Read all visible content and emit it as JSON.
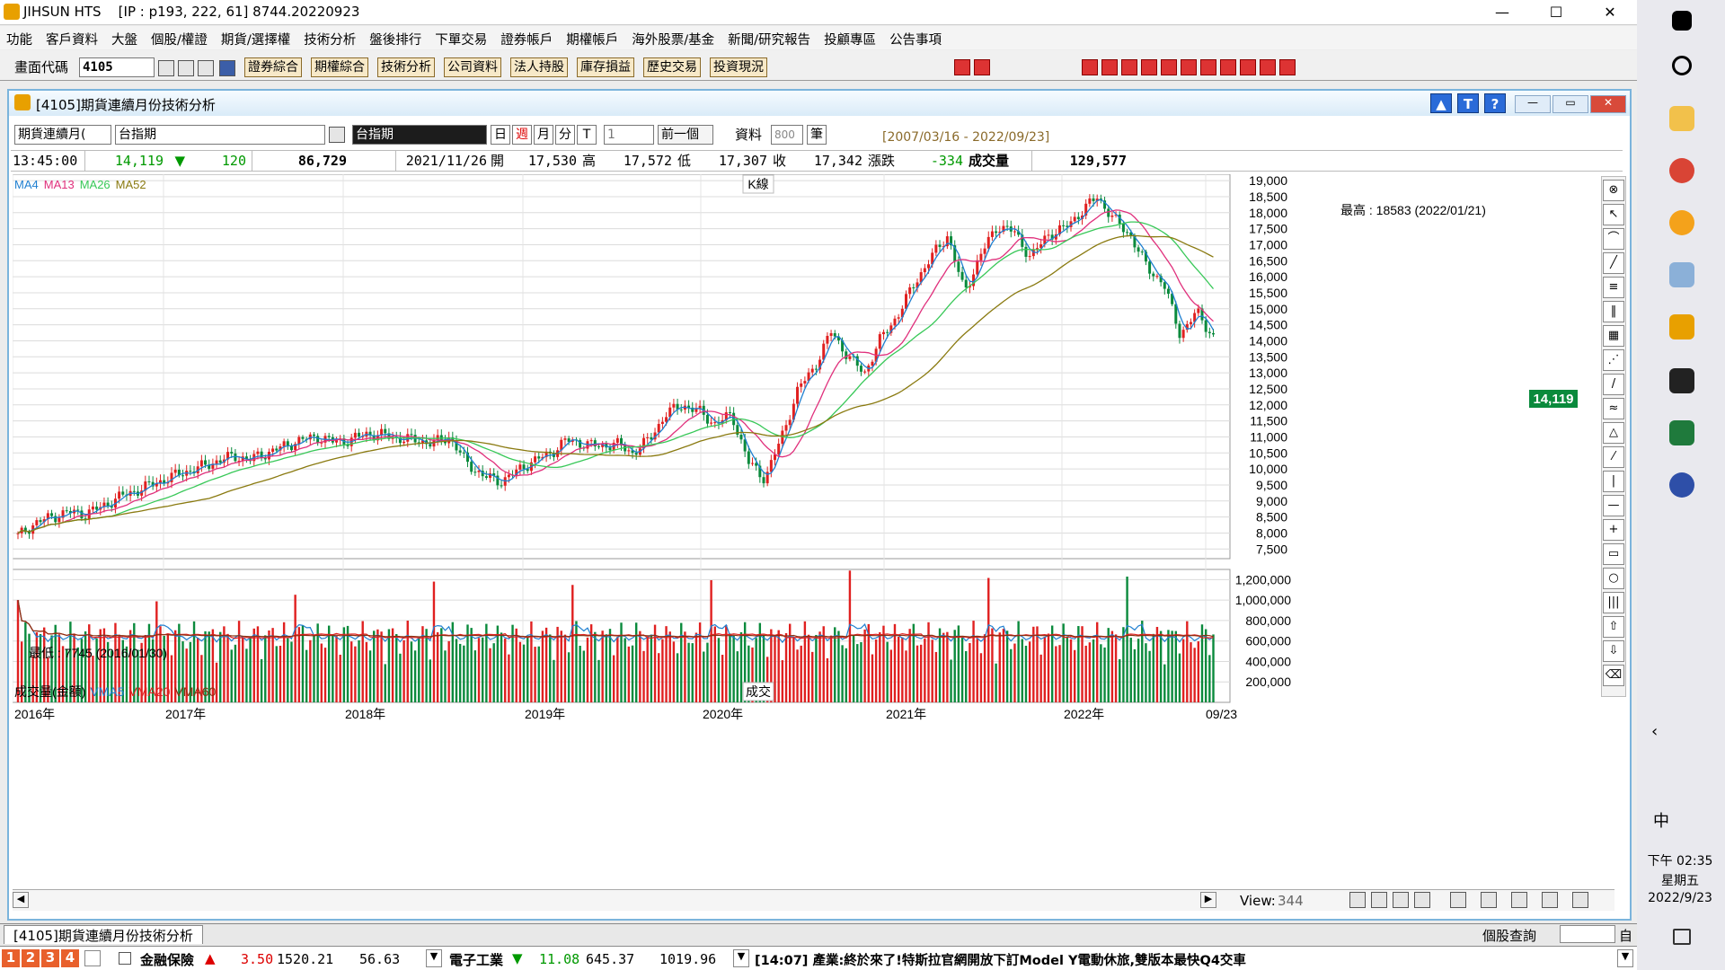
{
  "window": {
    "app_title": "JIHSUN HTS",
    "ip_info": "[IP : p193, 222, 61]  8744.20220923",
    "min": "—",
    "max": "☐",
    "close": "✕"
  },
  "menu": [
    "功能",
    "客戶資料",
    "大盤",
    "個股/權證",
    "期貨/選擇權",
    "技術分析",
    "盤後排行",
    "下單交易",
    "證券帳戶",
    "期權帳戶",
    "海外股票/基金",
    "新聞/研究報告",
    "投顧專區",
    "公告事項"
  ],
  "toolbar": {
    "code_label": "畫面代碼",
    "code_value": "4105",
    "buttons": [
      "證券綜合",
      "期權綜合",
      "技術分析",
      "公司資料",
      "法人持股",
      "庫存損益",
      "歷史交易",
      "投資現況"
    ]
  },
  "child": {
    "title": "[4105]期貨連續月份技術分析",
    "blue_btns": [
      "▲",
      "T",
      "?"
    ]
  },
  "controls": {
    "series_select": "期貨連續月(",
    "symbol": "台指期",
    "symbol_name": "台指期",
    "periods": [
      "日",
      "週",
      "月",
      "分",
      "T"
    ],
    "period_count": "1",
    "prev_btn": "前一個",
    "data_label": "資料",
    "data_count": "800",
    "data_unit": "筆",
    "range": "[2007/03/16 - 2022/09/23]"
  },
  "quote": {
    "time": "13:45:00",
    "price": "14,119",
    "arrow": "▼",
    "change": "120",
    "volume": "86,729",
    "date": "2021/11/26",
    "open_label": "開",
    "open": "17,530",
    "high_label": "高",
    "high": "17,572",
    "low_label": "低",
    "low": "17,307",
    "close_label": "收",
    "close": "17,342",
    "chg_label": "漲跌",
    "chg": "-334",
    "vol_label": "成交量",
    "vol": "129,577"
  },
  "chart_data": {
    "type": "line",
    "title": "K線",
    "legend": [
      "MA4",
      "MA13",
      "MA26",
      "MA52"
    ],
    "legend_colors": [
      "#1f7fd0",
      "#e0307c",
      "#38c858",
      "#8a7a10"
    ],
    "yticks": [
      "19,000",
      "18,500",
      "18,000",
      "17,500",
      "17,000",
      "16,500",
      "16,000",
      "15,500",
      "15,000",
      "14,500",
      "14,000",
      "13,500",
      "13,000",
      "12,500",
      "12,000",
      "11,500",
      "11,000",
      "10,500",
      "10,000",
      "9,500",
      "9,000",
      "8,500",
      "8,000",
      "7,500"
    ],
    "ylim": [
      7200,
      19200
    ],
    "x_labels": [
      "2016年",
      "2017年",
      "2018年",
      "2019年",
      "2020年",
      "2021年",
      "2022年",
      "09/23"
    ],
    "last_price_tag": "14,119",
    "max_annotation": "最高 : 18583 (2022/01/21)",
    "min_annotation": "最低 : 7745 (2016/01/30)",
    "closes": [
      7900,
      8300,
      8500,
      8650,
      8600,
      8800,
      9100,
      9300,
      9500,
      9700,
      9900,
      10050,
      10250,
      10400,
      10300,
      10500,
      10700,
      10900,
      11000,
      10850,
      10900,
      11100,
      11050,
      10950,
      10900,
      10800,
      11000,
      10200,
      9800,
      9600,
      9900,
      10250,
      10450,
      10900,
      10800,
      10700,
      10800,
      10500,
      10900,
      11700,
      12000,
      11800,
      11400,
      11700,
      10200,
      9700,
      11000,
      12500,
      13200,
      14300,
      13500,
      13000,
      14100,
      14800,
      15800,
      16600,
      17300,
      15500,
      16700,
      17600,
      17400,
      16600,
      17300,
      17500,
      18000,
      18500,
      17800,
      17300,
      16300,
      15800,
      14200,
      14900,
      14119
    ],
    "vol_title": "成交量(金額)",
    "vol_legend": [
      "VMA5",
      "VMA20",
      "VMA60"
    ],
    "vol_yticks": [
      "1,200,000",
      "1,000,000",
      "800,000",
      "600,000",
      "400,000",
      "200,000"
    ],
    "vol_label": "成交"
  },
  "bottom": {
    "tab": "[4105]期貨連續月份技術分析",
    "query": "個股查詢",
    "self": "自"
  },
  "ticker": {
    "nums": [
      "1",
      "2",
      "3",
      "4"
    ],
    "sector1": "金融保險",
    "s1_arrow": "▲",
    "s1_chg": "3.50",
    "s1_idx": "1520.21",
    "s1_vol": "56.63",
    "sector2": "電子工業",
    "s2_arrow": "▼",
    "s2_chg": "11.08",
    "s2_idx": "645.37",
    "s2_vol": "1019.96",
    "news": "[14:07] 產業:終於來了!特斯拉官網開放下訂Model Y電動休旅,雙版本最快Q4交車"
  },
  "scroll": {
    "view_label": "View:",
    "view_value": "344"
  },
  "clock": {
    "time": "下午 02:35",
    "weekday": "星期五",
    "date": "2022/9/23"
  },
  "taskbar": {
    "ime": "中"
  }
}
